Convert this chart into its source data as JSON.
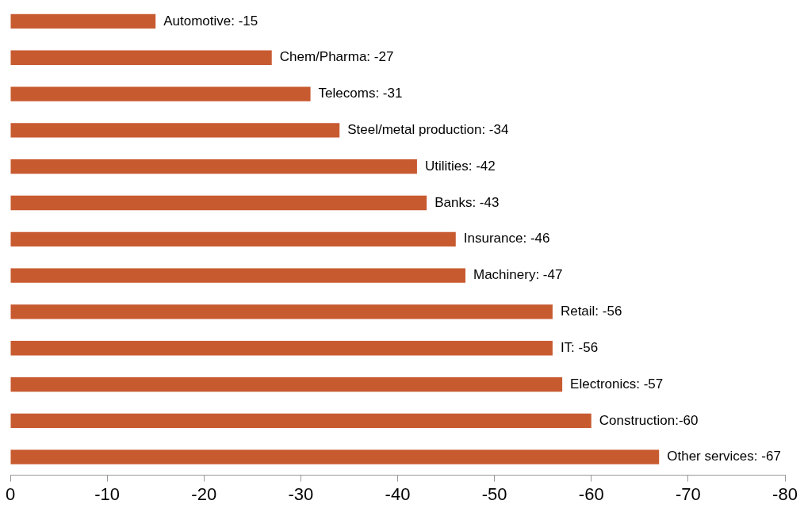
{
  "chart_data": {
    "type": "bar",
    "orientation": "horizontal",
    "categories": [
      null,
      null,
      null,
      null,
      null,
      null,
      null,
      null,
      null,
      null,
      null,
      null,
      null
    ],
    "values": [
      -15,
      -27,
      -31,
      -34,
      -42,
      -43,
      -46,
      -47,
      -56,
      -56,
      -57,
      -60,
      -67
    ],
    "value_labels": [
      "Automotive: -15",
      "Chem/Pharma: -27",
      "Telecoms: -31",
      "Steel/metal production: -34",
      "Utilities: -42",
      "Banks: -43",
      "Insurance: -46",
      "Machinery: -47",
      "Retail: -56",
      "IT: -56",
      "Electronics: -57",
      "Construction:-60",
      "Other services: -67"
    ],
    "color": "#c85a30",
    "xlim": [
      0,
      -80
    ],
    "xticks": [
      0,
      -10,
      -20,
      -30,
      -40,
      -50,
      -60,
      -70,
      -80
    ],
    "grid": false,
    "legend": false
  }
}
